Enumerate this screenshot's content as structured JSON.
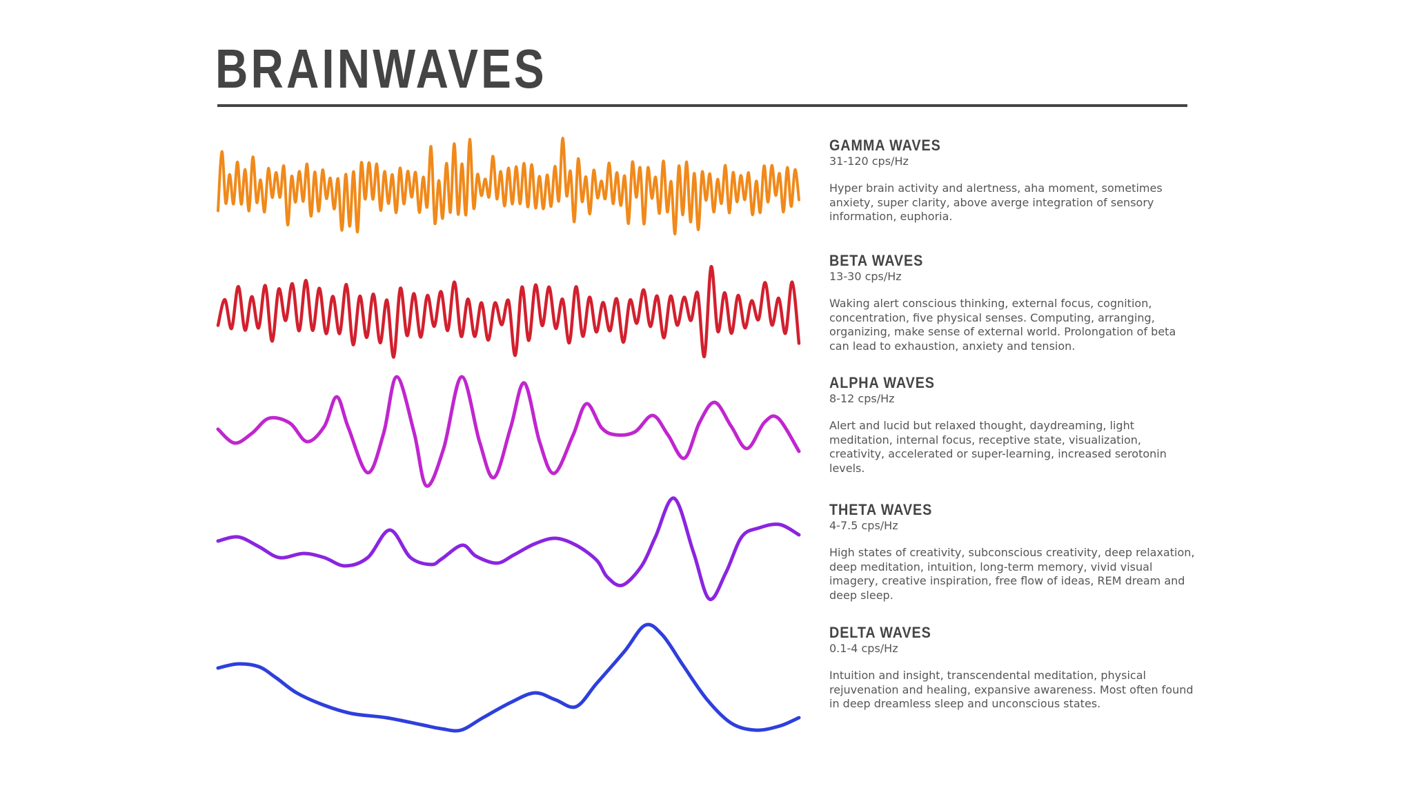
{
  "title": "BRAINWAVES",
  "waves": [
    {
      "id": "gamma",
      "name": "GAMMA WAVES",
      "frequency": "31-120 cps/Hz",
      "description": "Hyper brain activity and alertness, aha moment, sometimes anxiety, super clarity, above averge integration of sensory information, euphoria.",
      "color": "#f0891a"
    },
    {
      "id": "beta",
      "name": "BETA WAVES",
      "frequency": "13-30 cps/Hz",
      "description": "Waking alert conscious thinking, external focus, cognition, concentration, five physical senses. Computing, arranging, organizing, make sense of external world. Prolongation of beta can lead to exhaustion, anxiety and tension.",
      "color": "#d2202e"
    },
    {
      "id": "alpha",
      "name": "ALPHA WAVES",
      "frequency": "8-12 cps/Hz",
      "description": "Alert and lucid but relaxed thought, daydreaming, light meditation, internal focus, receptive state, visualization, creativity, accelerated or super-learning, increased serotonin levels.",
      "color": "#c026cf"
    },
    {
      "id": "theta",
      "name": "THETA WAVES",
      "frequency": "4-7.5 cps/Hz",
      "description": "High states of creativity, subconscious creativity, deep relaxation, deep meditation, intuition, long-term memory, vivid visual imagery, creative inspiration, free flow of ideas, REM dream and deep sleep.",
      "color": "#8a25e0"
    },
    {
      "id": "delta",
      "name": "DELTA WAVES",
      "frequency": "0.1-4 cps/Hz",
      "description": "Intuition and insight, transcendental meditation, physical rejuvenation and healing, expansive awareness. Most often found in deep dreamless sleep and unconscious states.",
      "color": "#2e3fdc"
    }
  ]
}
